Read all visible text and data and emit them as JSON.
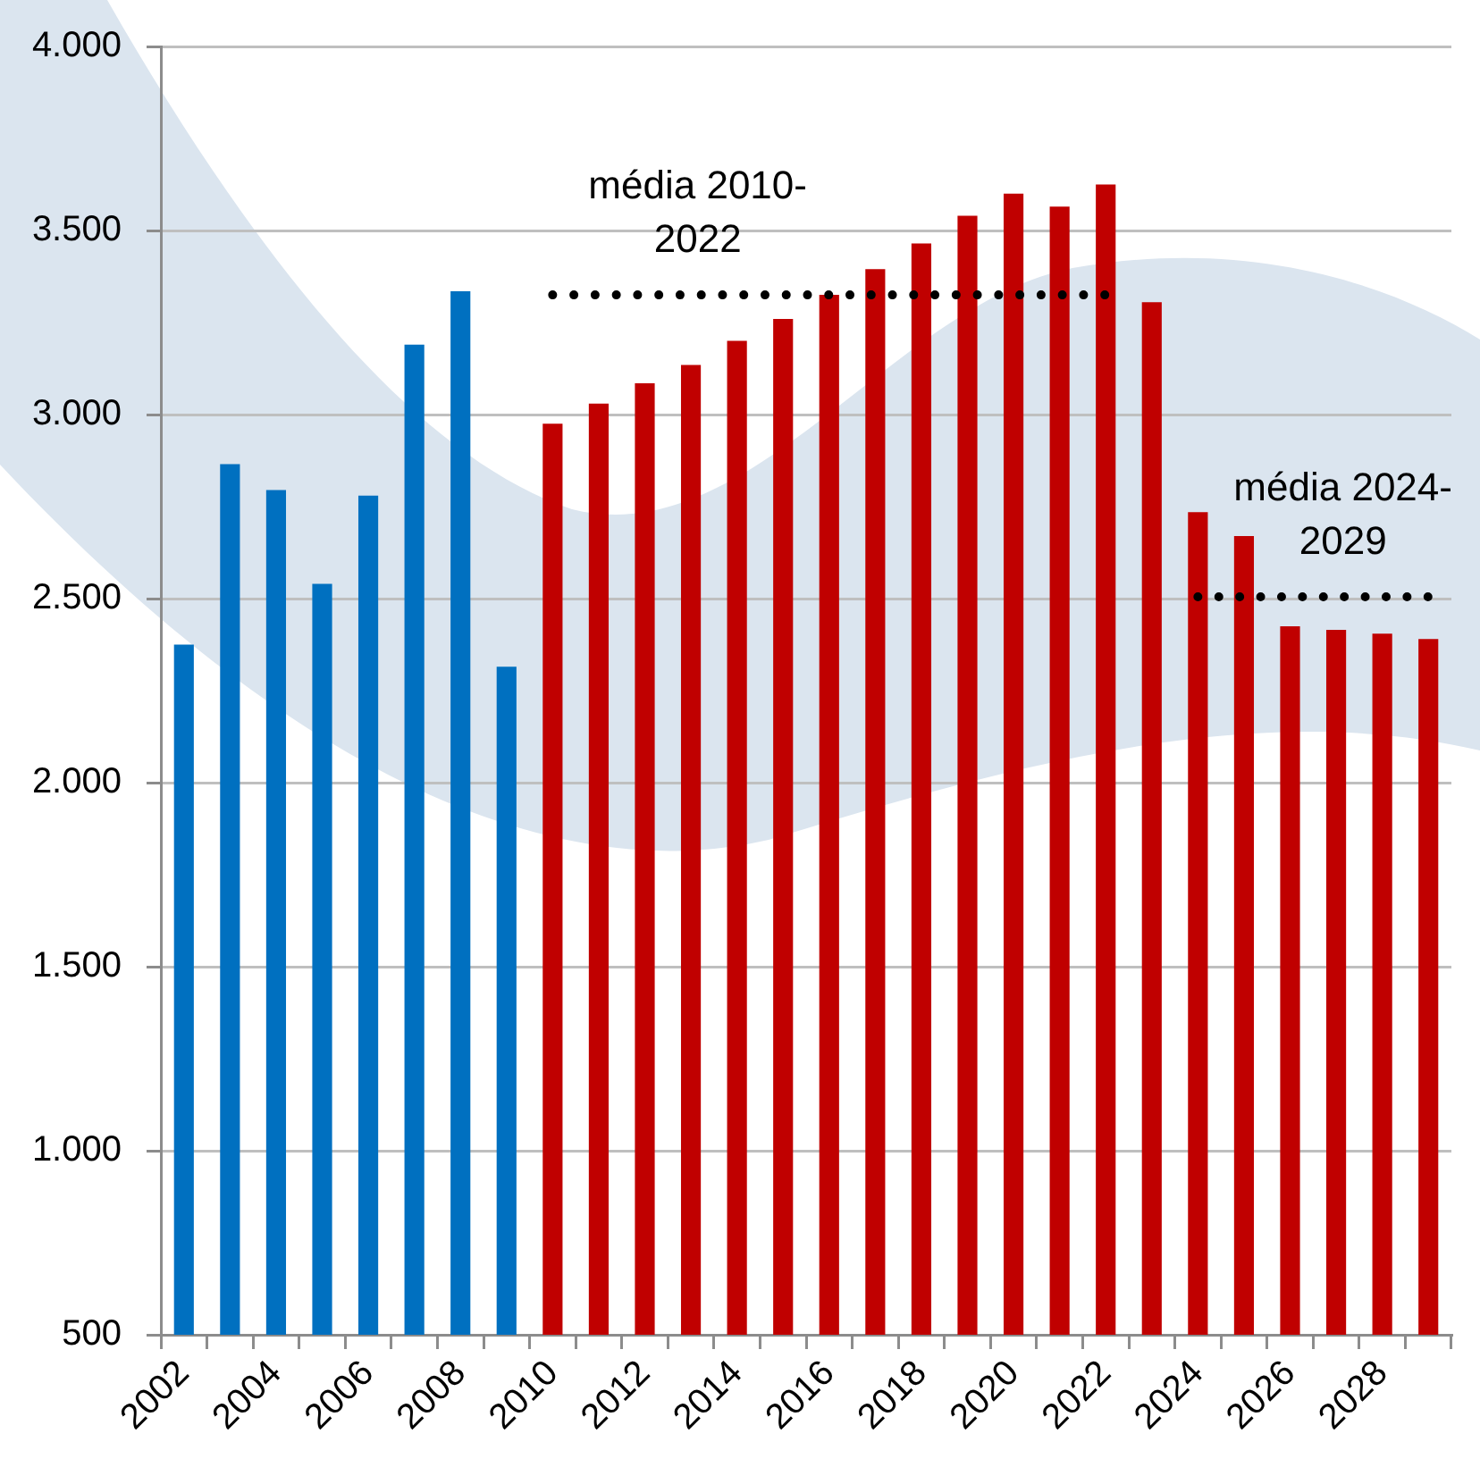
{
  "chart_data": {
    "type": "bar",
    "categories": [
      "2002",
      null,
      "2004",
      null,
      "2006",
      null,
      "2008",
      null,
      "2010",
      null,
      "2012",
      null,
      "2014",
      null,
      "2016",
      null,
      "2018",
      null,
      "2020",
      null,
      "2022",
      null,
      "2024",
      null,
      "2026",
      null,
      "2028",
      null
    ],
    "series": [
      {
        "colors": [
          "#0070c0",
          "#0070c0",
          "#0070c0",
          "#0070c0",
          "#0070c0",
          "#0070c0",
          "#0070c0",
          "#0070c0",
          "#c00000",
          "#c00000",
          "#c00000",
          "#c00000",
          "#c00000",
          "#c00000",
          "#c00000",
          "#c00000",
          "#c00000",
          "#c00000",
          "#c00000",
          "#c00000",
          "#c00000",
          "#c00000",
          "#c00000",
          "#c00000",
          "#c00000",
          "#c00000",
          "#c00000",
          "#c00000"
        ],
        "values": [
          2375,
          2865,
          2795,
          2540,
          2780,
          3190,
          3335,
          2315,
          2975,
          3030,
          3085,
          3135,
          3200,
          3260,
          3325,
          3395,
          3465,
          3540,
          3600,
          3565,
          3625,
          3305,
          2735,
          2670,
          2425,
          2415,
          2405,
          2390
        ]
      },
      {
        "type": "line",
        "name": "média 2010-2022",
        "color": "#000000",
        "line_style": "dotted",
        "values": [
          null,
          null,
          null,
          null,
          null,
          null,
          null,
          null,
          3325,
          3325,
          3325,
          3325,
          3325,
          3325,
          3325,
          3325,
          3325,
          3325,
          3325,
          3325,
          3325,
          null,
          null,
          null,
          null,
          null,
          null,
          null
        ]
      },
      {
        "type": "line",
        "name": "média 2024-2029",
        "color": "#000000",
        "line_style": "dotted",
        "values": [
          null,
          null,
          null,
          null,
          null,
          null,
          null,
          null,
          null,
          null,
          null,
          null,
          null,
          null,
          null,
          null,
          null,
          null,
          null,
          null,
          null,
          null,
          2505,
          2505,
          2505,
          2505,
          2505,
          2505
        ]
      }
    ],
    "ylim": [
      500,
      4000
    ],
    "yticks": [
      500,
      {
        "value": 1000,
        "label": "1.000"
      },
      {
        "value": 1500,
        "label": "1.500"
      },
      {
        "value": 2000,
        "label": "2.000"
      },
      {
        "value": 2500,
        "label": "2.500"
      },
      {
        "value": 3000,
        "label": "3.000"
      },
      {
        "value": 3500,
        "label": "3.500"
      },
      {
        "value": 4000,
        "label": "4.000"
      }
    ],
    "grid": "y",
    "legend": false,
    "marker": "none"
  }
}
